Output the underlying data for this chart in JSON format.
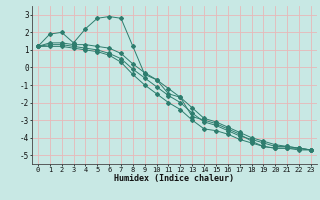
{
  "xlabel": "Humidex (Indice chaleur)",
  "background_color": "#c8e8e4",
  "grid_color": "#e8b8b8",
  "line_color": "#2e7d6e",
  "xlim": [
    -0.5,
    23.5
  ],
  "ylim": [
    -5.5,
    3.5
  ],
  "yticks": [
    -5,
    -4,
    -3,
    -2,
    -1,
    0,
    1,
    2,
    3
  ],
  "xticks": [
    0,
    1,
    2,
    3,
    4,
    5,
    6,
    7,
    8,
    9,
    10,
    11,
    12,
    13,
    14,
    15,
    16,
    17,
    18,
    19,
    20,
    21,
    22,
    23
  ],
  "series": [
    {
      "x": [
        0,
        1,
        2,
        3,
        4,
        5,
        6,
        7,
        8,
        9,
        10,
        11,
        12,
        13,
        14,
        15,
        16,
        17,
        18,
        19,
        20,
        21,
        22,
        23
      ],
      "y": [
        1.2,
        1.9,
        2.0,
        1.4,
        2.2,
        2.8,
        2.9,
        2.8,
        1.2,
        -0.4,
        -0.7,
        -1.5,
        -1.7,
        -2.8,
        -3.0,
        -3.2,
        -3.5,
        -3.8,
        -4.2,
        -4.5,
        -4.6,
        -4.6,
        -4.6,
        -4.7
      ]
    },
    {
      "x": [
        0,
        1,
        2,
        3,
        4,
        5,
        6,
        7,
        8,
        9,
        10,
        11,
        12,
        13,
        14,
        15,
        16,
        17,
        18,
        19,
        20,
        21,
        22,
        23
      ],
      "y": [
        1.2,
        1.4,
        1.4,
        1.3,
        1.3,
        1.2,
        1.1,
        0.8,
        0.2,
        -0.3,
        -0.7,
        -1.2,
        -1.7,
        -2.3,
        -2.9,
        -3.1,
        -3.4,
        -3.7,
        -4.0,
        -4.2,
        -4.4,
        -4.5,
        -4.6,
        -4.7
      ]
    },
    {
      "x": [
        0,
        1,
        2,
        3,
        4,
        5,
        6,
        7,
        8,
        9,
        10,
        11,
        12,
        13,
        14,
        15,
        16,
        17,
        18,
        19,
        20,
        21,
        22,
        23
      ],
      "y": [
        1.2,
        1.3,
        1.3,
        1.2,
        1.1,
        1.0,
        0.8,
        0.5,
        -0.1,
        -0.6,
        -1.1,
        -1.6,
        -2.0,
        -2.6,
        -3.1,
        -3.3,
        -3.6,
        -3.9,
        -4.1,
        -4.3,
        -4.5,
        -4.5,
        -4.6,
        -4.7
      ]
    },
    {
      "x": [
        0,
        1,
        2,
        3,
        4,
        5,
        6,
        7,
        8,
        9,
        10,
        11,
        12,
        13,
        14,
        15,
        16,
        17,
        18,
        19,
        20,
        21,
        22,
        23
      ],
      "y": [
        1.2,
        1.2,
        1.2,
        1.1,
        1.0,
        0.9,
        0.7,
        0.3,
        -0.4,
        -1.0,
        -1.5,
        -2.0,
        -2.4,
        -3.0,
        -3.5,
        -3.6,
        -3.8,
        -4.1,
        -4.3,
        -4.5,
        -4.6,
        -4.6,
        -4.7,
        -4.7
      ]
    }
  ]
}
